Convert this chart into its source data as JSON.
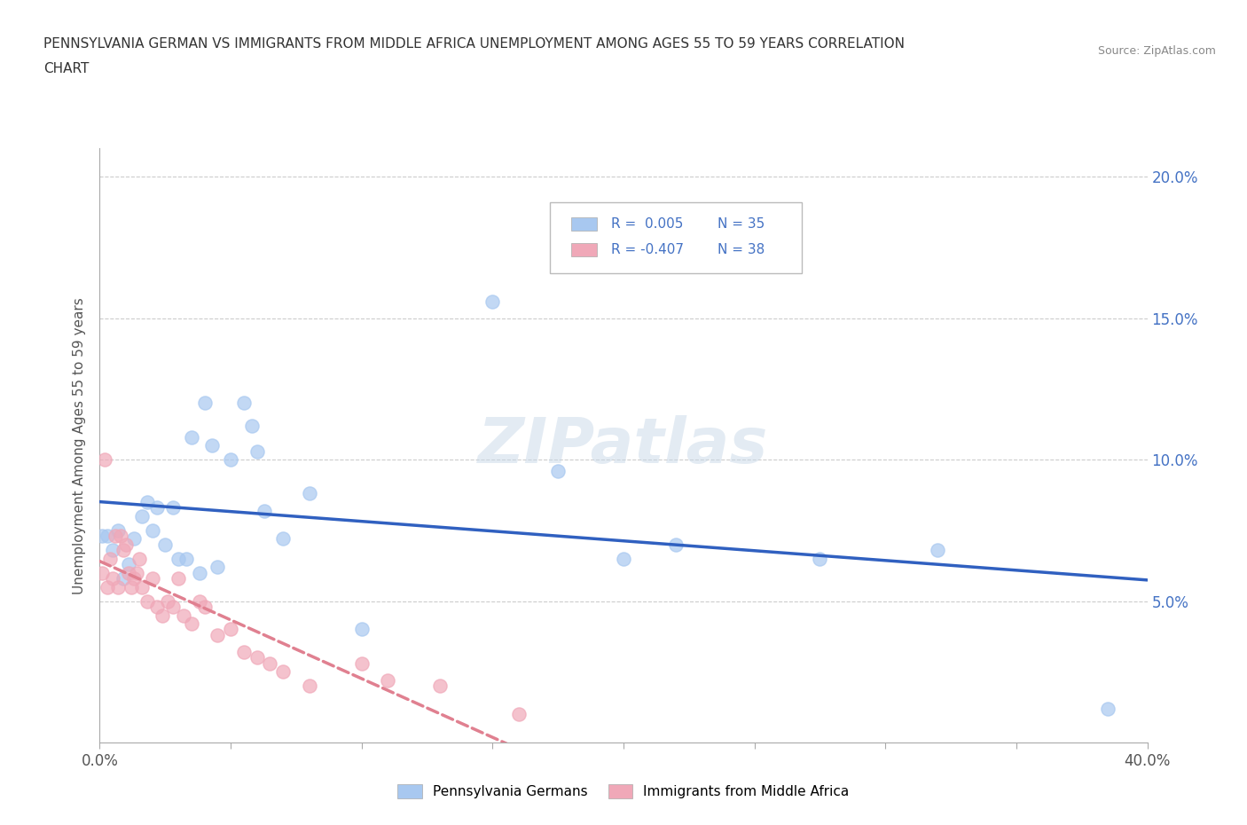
{
  "title_line1": "PENNSYLVANIA GERMAN VS IMMIGRANTS FROM MIDDLE AFRICA UNEMPLOYMENT AMONG AGES 55 TO 59 YEARS CORRELATION",
  "title_line2": "CHART",
  "source": "Source: ZipAtlas.com",
  "ylabel": "Unemployment Among Ages 55 to 59 years",
  "xlim": [
    0.0,
    0.4
  ],
  "ylim": [
    0.0,
    0.21
  ],
  "xticks": [
    0.0,
    0.05,
    0.1,
    0.15,
    0.2,
    0.25,
    0.3,
    0.35,
    0.4
  ],
  "yticks": [
    0.0,
    0.05,
    0.1,
    0.15,
    0.2
  ],
  "grid_color": "#cccccc",
  "background_color": "#ffffff",
  "legend_r1": "R =  0.005",
  "legend_n1": "N = 35",
  "legend_r2": "R = -0.407",
  "legend_n2": "N = 38",
  "blue_color": "#a8c8f0",
  "pink_color": "#f0a8b8",
  "trendline1_color": "#3060c0",
  "trendline2_color": "#e08090",
  "text_color_blue": "#4472c4",
  "scatter_blue": [
    [
      0.001,
      0.073
    ],
    [
      0.003,
      0.073
    ],
    [
      0.005,
      0.068
    ],
    [
      0.007,
      0.075
    ],
    [
      0.009,
      0.058
    ],
    [
      0.011,
      0.063
    ],
    [
      0.013,
      0.072
    ],
    [
      0.016,
      0.08
    ],
    [
      0.018,
      0.085
    ],
    [
      0.02,
      0.075
    ],
    [
      0.022,
      0.083
    ],
    [
      0.025,
      0.07
    ],
    [
      0.028,
      0.083
    ],
    [
      0.03,
      0.065
    ],
    [
      0.033,
      0.065
    ],
    [
      0.035,
      0.108
    ],
    [
      0.038,
      0.06
    ],
    [
      0.04,
      0.12
    ],
    [
      0.043,
      0.105
    ],
    [
      0.045,
      0.062
    ],
    [
      0.05,
      0.1
    ],
    [
      0.055,
      0.12
    ],
    [
      0.058,
      0.112
    ],
    [
      0.06,
      0.103
    ],
    [
      0.063,
      0.082
    ],
    [
      0.07,
      0.072
    ],
    [
      0.08,
      0.088
    ],
    [
      0.1,
      0.04
    ],
    [
      0.15,
      0.156
    ],
    [
      0.175,
      0.096
    ],
    [
      0.2,
      0.065
    ],
    [
      0.22,
      0.07
    ],
    [
      0.275,
      0.065
    ],
    [
      0.32,
      0.068
    ],
    [
      0.385,
      0.012
    ]
  ],
  "scatter_pink": [
    [
      0.001,
      0.06
    ],
    [
      0.002,
      0.1
    ],
    [
      0.003,
      0.055
    ],
    [
      0.004,
      0.065
    ],
    [
      0.005,
      0.058
    ],
    [
      0.006,
      0.073
    ],
    [
      0.007,
      0.055
    ],
    [
      0.008,
      0.073
    ],
    [
      0.009,
      0.068
    ],
    [
      0.01,
      0.07
    ],
    [
      0.011,
      0.06
    ],
    [
      0.012,
      0.055
    ],
    [
      0.013,
      0.058
    ],
    [
      0.014,
      0.06
    ],
    [
      0.015,
      0.065
    ],
    [
      0.016,
      0.055
    ],
    [
      0.018,
      0.05
    ],
    [
      0.02,
      0.058
    ],
    [
      0.022,
      0.048
    ],
    [
      0.024,
      0.045
    ],
    [
      0.026,
      0.05
    ],
    [
      0.028,
      0.048
    ],
    [
      0.03,
      0.058
    ],
    [
      0.032,
      0.045
    ],
    [
      0.035,
      0.042
    ],
    [
      0.038,
      0.05
    ],
    [
      0.04,
      0.048
    ],
    [
      0.045,
      0.038
    ],
    [
      0.05,
      0.04
    ],
    [
      0.055,
      0.032
    ],
    [
      0.06,
      0.03
    ],
    [
      0.065,
      0.028
    ],
    [
      0.07,
      0.025
    ],
    [
      0.08,
      0.02
    ],
    [
      0.1,
      0.028
    ],
    [
      0.11,
      0.022
    ],
    [
      0.13,
      0.02
    ],
    [
      0.16,
      0.01
    ]
  ]
}
